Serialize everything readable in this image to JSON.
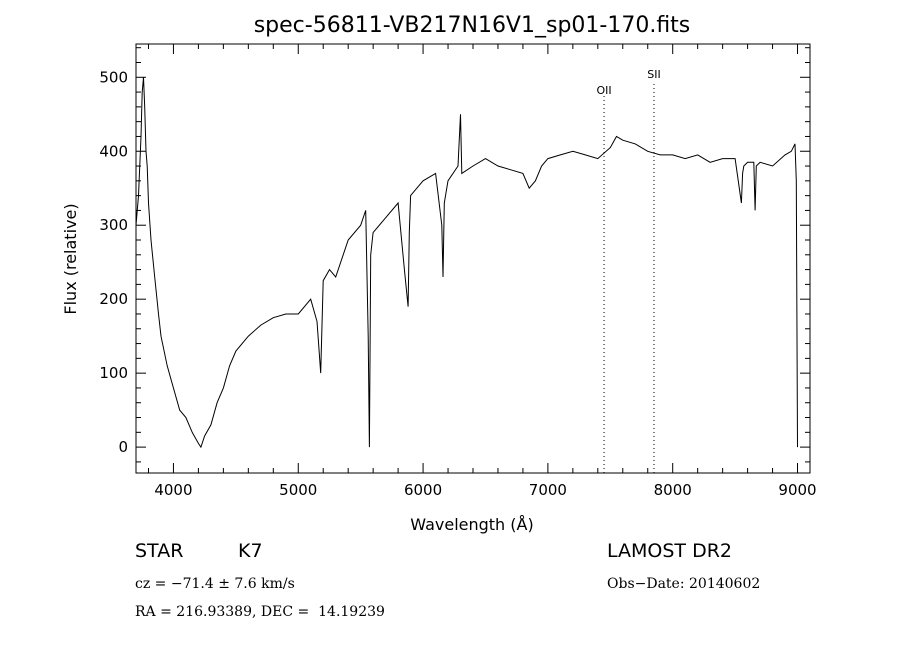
{
  "chart_data": {
    "type": "line",
    "title": "spec-56811-VB217N16V1_sp01-170.fits",
    "xlabel": "Wavelength (Å)",
    "ylabel": "Flux (relative)",
    "xlim": [
      3700,
      9100
    ],
    "ylim": [
      -35,
      545
    ],
    "xticks": [
      "4000",
      "5000",
      "6000",
      "7000",
      "8000",
      "9000"
    ],
    "yticks": [
      "0",
      "100",
      "200",
      "300",
      "400",
      "500"
    ],
    "grid": false,
    "lines": [
      {
        "name": "OII",
        "x": 7450
      },
      {
        "name": "SII",
        "x": 7850
      }
    ],
    "series": [
      {
        "x": [
          3700,
          3720,
          3740,
          3750,
          3760,
          3770,
          3780,
          3790,
          3800,
          3820,
          3850,
          3880,
          3900,
          3950,
          4000,
          4050,
          4100,
          4150,
          4200,
          4220,
          4250,
          4300,
          4350,
          4400,
          4450,
          4500,
          4600,
          4700,
          4800,
          4900,
          5000,
          5100,
          5150,
          5180,
          5200,
          5250,
          5300,
          5400,
          5500,
          5540,
          5560,
          5570,
          5580,
          5600,
          5700,
          5800,
          5850,
          5880,
          5890,
          5900,
          5950,
          6000,
          6100,
          6150,
          6160,
          6170,
          6200,
          6280,
          6300,
          6310,
          6400,
          6500,
          6600,
          6700,
          6800,
          6850,
          6900,
          6950,
          7000,
          7100,
          7200,
          7300,
          7400,
          7500,
          7550,
          7600,
          7700,
          7800,
          7900,
          8000,
          8100,
          8200,
          8300,
          8400,
          8500,
          8550,
          8560,
          8570,
          8600,
          8650,
          8660,
          8670,
          8700,
          8800,
          8900,
          8950,
          8980,
          8990,
          9000
        ],
        "y": [
          300,
          340,
          420,
          480,
          500,
          460,
          400,
          380,
          330,
          280,
          230,
          180,
          150,
          110,
          80,
          50,
          40,
          20,
          5,
          0,
          15,
          30,
          60,
          80,
          110,
          130,
          150,
          165,
          175,
          180,
          180,
          200,
          170,
          100,
          225,
          240,
          230,
          280,
          300,
          320,
          150,
          0,
          260,
          290,
          310,
          330,
          240,
          190,
          290,
          340,
          350,
          360,
          370,
          300,
          230,
          330,
          360,
          380,
          450,
          370,
          380,
          390,
          380,
          375,
          370,
          350,
          360,
          380,
          390,
          395,
          400,
          395,
          390,
          405,
          420,
          415,
          410,
          400,
          395,
          395,
          390,
          395,
          385,
          390,
          390,
          330,
          370,
          380,
          385,
          385,
          320,
          380,
          385,
          380,
          395,
          400,
          410,
          360,
          0
        ]
      }
    ]
  },
  "info": {
    "object_class": "STAR",
    "subclass": "K7",
    "survey": "LAMOST DR2",
    "cz": "cz = −71.4 ± 7.6 km/s",
    "obs_date": "Obs−Date: 20140602",
    "coords": "RA = 216.93389, DEC =  14.19239"
  }
}
